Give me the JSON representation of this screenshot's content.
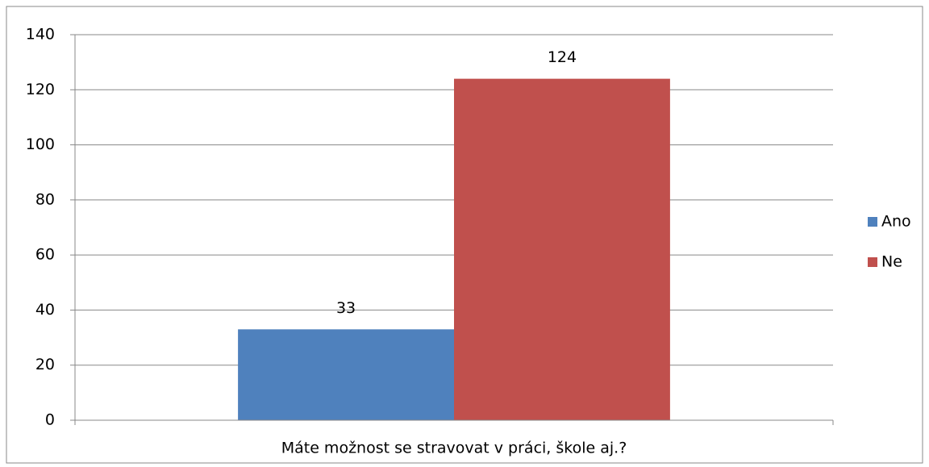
{
  "chart_data": {
    "type": "bar",
    "categories": [
      "Máte možnost se stravovat v práci, škole aj.?"
    ],
    "series": [
      {
        "name": "Ano",
        "color": "#4f81bd",
        "values": [
          33
        ]
      },
      {
        "name": "Ne",
        "color": "#c0504d",
        "values": [
          124
        ]
      }
    ],
    "ylim": [
      0,
      140
    ],
    "yticks": [
      0,
      20,
      40,
      60,
      80,
      100,
      120,
      140
    ],
    "grid": true,
    "legend": "right"
  }
}
